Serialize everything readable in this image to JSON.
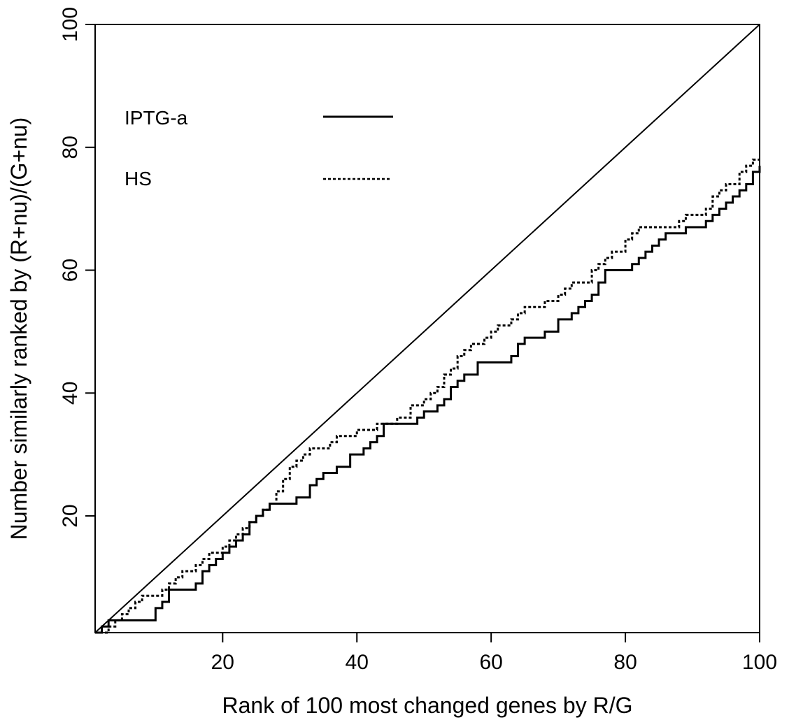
{
  "chart_data": {
    "type": "line",
    "title": "",
    "xlabel": "Rank of 100 most changed genes by R/G",
    "ylabel": "Number similarly ranked by (R+nu)/(G+nu)",
    "xlim": [
      1,
      100
    ],
    "ylim": [
      1,
      100
    ],
    "x_ticks": [
      20,
      40,
      60,
      80,
      100
    ],
    "y_ticks": [
      20,
      40,
      60,
      80,
      100
    ],
    "x_tick_labels": [
      "20",
      "40",
      "60",
      "80",
      "100"
    ],
    "y_tick_labels": [
      "20",
      "40",
      "60",
      "80",
      "100"
    ],
    "grid": false,
    "legend_position": "top-left",
    "reference_line": {
      "style": "solid",
      "x": [
        1,
        100
      ],
      "y": [
        1,
        100
      ]
    },
    "series": [
      {
        "name": "IPTG-a",
        "style": "solid-step",
        "color": "#000000",
        "x": [
          1,
          2,
          3,
          4,
          10,
          11,
          12,
          15,
          16,
          17,
          18,
          19,
          20,
          21,
          22,
          23,
          24,
          25,
          26,
          27,
          28,
          31,
          33,
          34,
          35,
          37,
          39,
          41,
          42,
          43,
          44,
          48,
          49,
          50,
          52,
          53,
          54,
          55,
          56,
          58,
          62,
          63,
          64,
          65,
          68,
          70,
          72,
          73,
          74,
          75,
          76,
          77,
          79,
          81,
          82,
          83,
          84,
          85,
          86,
          89,
          91,
          92,
          93,
          94,
          95,
          96,
          97,
          98,
          99,
          100
        ],
        "y": [
          1,
          2,
          3,
          3,
          5,
          6,
          8,
          8,
          9,
          11,
          12,
          13,
          14,
          15,
          16,
          17,
          19,
          20,
          21,
          22,
          22,
          23,
          25,
          26,
          27,
          28,
          30,
          31,
          32,
          33,
          35,
          35,
          36,
          37,
          38,
          39,
          41,
          42,
          43,
          45,
          45,
          46,
          48,
          49,
          50,
          52,
          53,
          54,
          55,
          56,
          58,
          60,
          60,
          61,
          62,
          63,
          64,
          65,
          66,
          67,
          67,
          68,
          69,
          70,
          71,
          72,
          73,
          74,
          76,
          77
        ]
      },
      {
        "name": "HS",
        "style": "dashed-step",
        "color": "#000000",
        "x": [
          1,
          2,
          3,
          4,
          5,
          6,
          7,
          8,
          10,
          11,
          12,
          13,
          14,
          16,
          17,
          18,
          19,
          20,
          21,
          22,
          23,
          24,
          25,
          26,
          27,
          28,
          29,
          30,
          31,
          32,
          33,
          36,
          37,
          38,
          40,
          43,
          44,
          46,
          48,
          50,
          51,
          52,
          53,
          54,
          55,
          56,
          57,
          59,
          60,
          61,
          63,
          64,
          65,
          66,
          68,
          70,
          71,
          72,
          73,
          75,
          76,
          77,
          78,
          80,
          81,
          82,
          83,
          84,
          85,
          86,
          88,
          89,
          90,
          92,
          93,
          94,
          95,
          96,
          97,
          98,
          99,
          100
        ],
        "y": [
          0,
          1,
          2,
          3,
          4,
          5,
          6,
          7,
          7,
          8,
          9,
          10,
          11,
          12,
          13,
          14,
          14,
          15,
          16,
          17,
          18,
          19,
          20,
          21,
          22,
          24,
          26,
          28,
          29,
          30,
          31,
          32,
          33,
          33,
          34,
          35,
          35,
          36,
          38,
          39,
          40,
          41,
          43,
          44,
          46,
          47,
          48,
          49,
          50,
          51,
          52,
          53,
          54,
          54,
          55,
          56,
          57,
          58,
          58,
          60,
          61,
          62,
          63,
          65,
          66,
          67,
          67,
          67,
          67,
          67,
          68,
          69,
          69,
          70,
          72,
          73,
          74,
          74,
          76,
          77,
          78,
          78
        ]
      }
    ]
  }
}
